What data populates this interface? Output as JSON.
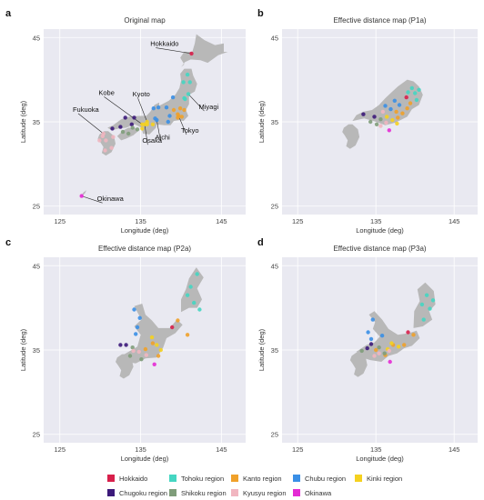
{
  "legend": [
    {
      "label": "Hokkaido",
      "color": "#d8204b"
    },
    {
      "label": "Tohoku region",
      "color": "#45d6c2"
    },
    {
      "label": "Kanto region",
      "color": "#f0a12a"
    },
    {
      "label": "Chubu region",
      "color": "#3a8fe6"
    },
    {
      "label": "Kinki region",
      "color": "#f5d11f"
    },
    {
      "label": "Chugoku region",
      "color": "#3c1a7a"
    },
    {
      "label": "Shikoku region",
      "color": "#7f9d7a"
    },
    {
      "label": "Kyusyu region",
      "color": "#f1b6c0"
    },
    {
      "label": "Okinawa",
      "color": "#e42bd4"
    }
  ],
  "chart_data": [
    {
      "type": "scatter",
      "panel": "a",
      "title": "Original map",
      "xlabel": "Longitude (deg)",
      "ylabel": "Latitude (deg)",
      "xlim": [
        123,
        148
      ],
      "ylim": [
        24,
        46
      ],
      "xticks": [
        125,
        135,
        145
      ],
      "yticks": [
        25,
        35,
        45
      ],
      "grid": true,
      "labels": [
        {
          "text": "Hokkaido",
          "point": [
            141.3,
            43.1
          ],
          "text_at": [
            136.2,
            44.0
          ]
        },
        {
          "text": "Miyagi",
          "point": [
            140.9,
            38.3
          ],
          "text_at": [
            142.2,
            36.5
          ]
        },
        {
          "text": "Kobe",
          "point": [
            135.2,
            34.7
          ],
          "text_at": [
            129.8,
            38.2
          ]
        },
        {
          "text": "Kyoto",
          "point": [
            135.8,
            35.0
          ],
          "text_at": [
            134.0,
            38.0
          ]
        },
        {
          "text": "Fukuoka",
          "point": [
            130.4,
            33.6
          ],
          "text_at": [
            126.6,
            36.2
          ]
        },
        {
          "text": "Tokyo",
          "point": [
            139.7,
            35.7
          ],
          "text_at": [
            140.0,
            33.7
          ]
        },
        {
          "text": "Osaka",
          "point": [
            135.5,
            34.7
          ],
          "text_at": [
            135.2,
            32.5
          ]
        },
        {
          "text": "Aichi",
          "point": [
            137.0,
            35.2
          ],
          "text_at": [
            136.8,
            32.9
          ]
        },
        {
          "text": "Okinawa",
          "point": [
            127.7,
            26.2
          ],
          "text_at": [
            129.6,
            25.6
          ]
        }
      ],
      "points": [
        {
          "lon": 141.3,
          "lat": 43.1,
          "region": 0
        },
        {
          "lon": 140.8,
          "lat": 40.6,
          "region": 1
        },
        {
          "lon": 140.3,
          "lat": 39.7,
          "region": 1
        },
        {
          "lon": 141.1,
          "lat": 39.7,
          "region": 1
        },
        {
          "lon": 140.9,
          "lat": 38.3,
          "region": 1
        },
        {
          "lon": 140.4,
          "lat": 37.8,
          "region": 1
        },
        {
          "lon": 140.5,
          "lat": 37.7,
          "region": 1
        },
        {
          "lon": 139.7,
          "lat": 35.7,
          "region": 2
        },
        {
          "lon": 140.1,
          "lat": 35.6,
          "region": 2
        },
        {
          "lon": 139.6,
          "lat": 35.5,
          "region": 2
        },
        {
          "lon": 139.6,
          "lat": 35.9,
          "region": 2
        },
        {
          "lon": 140.4,
          "lat": 36.4,
          "region": 2
        },
        {
          "lon": 139.9,
          "lat": 36.6,
          "region": 2
        },
        {
          "lon": 139.1,
          "lat": 36.4,
          "region": 2
        },
        {
          "lon": 137.0,
          "lat": 35.2,
          "region": 3
        },
        {
          "lon": 138.2,
          "lat": 36.7,
          "region": 3
        },
        {
          "lon": 139.0,
          "lat": 37.9,
          "region": 3
        },
        {
          "lon": 137.2,
          "lat": 36.7,
          "region": 3
        },
        {
          "lon": 136.6,
          "lat": 36.6,
          "region": 3
        },
        {
          "lon": 138.4,
          "lat": 35.0,
          "region": 3
        },
        {
          "lon": 136.8,
          "lat": 35.4,
          "region": 3
        },
        {
          "lon": 138.6,
          "lat": 35.7,
          "region": 3
        },
        {
          "lon": 135.5,
          "lat": 34.7,
          "region": 4
        },
        {
          "lon": 135.2,
          "lat": 34.7,
          "region": 4
        },
        {
          "lon": 135.8,
          "lat": 35.0,
          "region": 4
        },
        {
          "lon": 135.8,
          "lat": 34.7,
          "region": 4
        },
        {
          "lon": 135.2,
          "lat": 34.2,
          "region": 4
        },
        {
          "lon": 136.5,
          "lat": 34.7,
          "region": 4
        },
        {
          "lon": 132.5,
          "lat": 34.4,
          "region": 5
        },
        {
          "lon": 133.9,
          "lat": 34.7,
          "region": 5
        },
        {
          "lon": 131.5,
          "lat": 34.2,
          "region": 5
        },
        {
          "lon": 133.1,
          "lat": 35.5,
          "region": 5
        },
        {
          "lon": 134.2,
          "lat": 35.5,
          "region": 5
        },
        {
          "lon": 132.8,
          "lat": 33.8,
          "region": 6
        },
        {
          "lon": 134.0,
          "lat": 34.3,
          "region": 6
        },
        {
          "lon": 134.6,
          "lat": 34.1,
          "region": 6
        },
        {
          "lon": 133.5,
          "lat": 33.6,
          "region": 6
        },
        {
          "lon": 130.4,
          "lat": 33.6,
          "region": 7
        },
        {
          "lon": 129.9,
          "lat": 32.8,
          "region": 7
        },
        {
          "lon": 130.7,
          "lat": 32.8,
          "region": 7
        },
        {
          "lon": 131.6,
          "lat": 33.2,
          "region": 7
        },
        {
          "lon": 131.4,
          "lat": 31.9,
          "region": 7
        },
        {
          "lon": 130.6,
          "lat": 31.6,
          "region": 7
        },
        {
          "lon": 130.3,
          "lat": 33.3,
          "region": 7
        },
        {
          "lon": 127.7,
          "lat": 26.2,
          "region": 8
        }
      ]
    },
    {
      "type": "scatter",
      "panel": "b",
      "title": "Effective distance map (P1a)",
      "xlabel": "Longitude (deg)",
      "ylabel": "Latitude (deg)",
      "xlim": [
        123,
        148
      ],
      "ylim": [
        24,
        46
      ],
      "xticks": [
        125,
        135,
        145
      ],
      "yticks": [
        25,
        35,
        45
      ],
      "grid": true,
      "points": [
        {
          "lon": 138.9,
          "lat": 37.9,
          "region": 0
        },
        {
          "lon": 139.6,
          "lat": 39.0,
          "region": 1
        },
        {
          "lon": 140.0,
          "lat": 38.4,
          "region": 1
        },
        {
          "lon": 140.5,
          "lat": 38.8,
          "region": 1
        },
        {
          "lon": 139.1,
          "lat": 38.5,
          "region": 1
        },
        {
          "lon": 140.2,
          "lat": 37.6,
          "region": 1
        },
        {
          "lon": 138.4,
          "lat": 36.0,
          "region": 2
        },
        {
          "lon": 139.0,
          "lat": 36.6,
          "region": 2
        },
        {
          "lon": 137.6,
          "lat": 36.2,
          "region": 2
        },
        {
          "lon": 137.8,
          "lat": 35.5,
          "region": 2
        },
        {
          "lon": 139.4,
          "lat": 37.2,
          "region": 2
        },
        {
          "lon": 136.9,
          "lat": 36.5,
          "region": 3
        },
        {
          "lon": 137.4,
          "lat": 37.5,
          "region": 3
        },
        {
          "lon": 138.0,
          "lat": 37.0,
          "region": 3
        },
        {
          "lon": 136.2,
          "lat": 36.9,
          "region": 3
        },
        {
          "lon": 137.1,
          "lat": 35.2,
          "region": 4
        },
        {
          "lon": 136.4,
          "lat": 35.6,
          "region": 4
        },
        {
          "lon": 137.7,
          "lat": 34.8,
          "region": 4
        },
        {
          "lon": 133.4,
          "lat": 35.9,
          "region": 5
        },
        {
          "lon": 134.8,
          "lat": 35.6,
          "region": 5
        },
        {
          "lon": 135.6,
          "lat": 35.3,
          "region": 6
        },
        {
          "lon": 134.3,
          "lat": 35.0,
          "region": 6
        },
        {
          "lon": 135.1,
          "lat": 34.7,
          "region": 6
        },
        {
          "lon": 135.9,
          "lat": 36.2,
          "region": 7
        },
        {
          "lon": 136.3,
          "lat": 34.9,
          "region": 7
        },
        {
          "lon": 135.6,
          "lat": 34.5,
          "region": 7
        },
        {
          "lon": 136.7,
          "lat": 34.0,
          "region": 8
        }
      ]
    },
    {
      "type": "scatter",
      "panel": "c",
      "title": "Effective distance map (P2a)",
      "xlabel": "Longitude (deg)",
      "ylabel": "Latitude (deg)",
      "xlim": [
        123,
        148
      ],
      "ylim": [
        24,
        46
      ],
      "xticks": [
        125,
        135,
        145
      ],
      "yticks": [
        25,
        35,
        45
      ],
      "grid": true,
      "points": [
        {
          "lon": 138.9,
          "lat": 37.7,
          "region": 0
        },
        {
          "lon": 142.0,
          "lat": 44.0,
          "region": 1
        },
        {
          "lon": 141.2,
          "lat": 42.5,
          "region": 1
        },
        {
          "lon": 141.6,
          "lat": 40.6,
          "region": 1
        },
        {
          "lon": 140.8,
          "lat": 41.5,
          "region": 1
        },
        {
          "lon": 142.3,
          "lat": 39.8,
          "region": 1
        },
        {
          "lon": 136.5,
          "lat": 35.8,
          "region": 2
        },
        {
          "lon": 140.8,
          "lat": 36.8,
          "region": 2
        },
        {
          "lon": 137.2,
          "lat": 34.3,
          "region": 2
        },
        {
          "lon": 135.6,
          "lat": 35.1,
          "region": 2
        },
        {
          "lon": 139.6,
          "lat": 38.5,
          "region": 2
        },
        {
          "lon": 134.9,
          "lat": 38.8,
          "region": 3
        },
        {
          "lon": 134.2,
          "lat": 39.8,
          "region": 3
        },
        {
          "lon": 134.6,
          "lat": 37.7,
          "region": 3
        },
        {
          "lon": 134.4,
          "lat": 36.9,
          "region": 3
        },
        {
          "lon": 137.0,
          "lat": 35.6,
          "region": 4
        },
        {
          "lon": 136.4,
          "lat": 36.5,
          "region": 4
        },
        {
          "lon": 137.5,
          "lat": 35.0,
          "region": 4
        },
        {
          "lon": 132.5,
          "lat": 35.6,
          "region": 5
        },
        {
          "lon": 133.2,
          "lat": 35.6,
          "region": 5
        },
        {
          "lon": 133.7,
          "lat": 34.3,
          "region": 6
        },
        {
          "lon": 135.1,
          "lat": 33.9,
          "region": 6
        },
        {
          "lon": 134.0,
          "lat": 35.3,
          "region": 6
        },
        {
          "lon": 134.8,
          "lat": 34.8,
          "region": 7
        },
        {
          "lon": 135.7,
          "lat": 34.4,
          "region": 7
        },
        {
          "lon": 134.1,
          "lat": 34.9,
          "region": 7
        },
        {
          "lon": 136.7,
          "lat": 33.3,
          "region": 8
        }
      ]
    },
    {
      "type": "scatter",
      "panel": "d",
      "title": "Effective distance map (P3a)",
      "xlabel": "Longitude (deg)",
      "ylabel": "Latitude (deg)",
      "xlim": [
        123,
        148
      ],
      "ylim": [
        24,
        46
      ],
      "xticks": [
        125,
        135,
        145
      ],
      "yticks": [
        25,
        35,
        45
      ],
      "grid": true,
      "points": [
        {
          "lon": 139.1,
          "lat": 37.1,
          "region": 0
        },
        {
          "lon": 141.9,
          "lat": 39.9,
          "region": 1
        },
        {
          "lon": 141.5,
          "lat": 41.5,
          "region": 1
        },
        {
          "lon": 140.9,
          "lat": 40.4,
          "region": 1
        },
        {
          "lon": 142.3,
          "lat": 40.9,
          "region": 1
        },
        {
          "lon": 141.1,
          "lat": 38.6,
          "region": 1
        },
        {
          "lon": 137.2,
          "lat": 35.6,
          "region": 2
        },
        {
          "lon": 138.6,
          "lat": 35.6,
          "region": 2
        },
        {
          "lon": 136.2,
          "lat": 34.4,
          "region": 2
        },
        {
          "lon": 135.0,
          "lat": 35.0,
          "region": 2
        },
        {
          "lon": 139.8,
          "lat": 36.8,
          "region": 2
        },
        {
          "lon": 134.6,
          "lat": 38.6,
          "region": 3
        },
        {
          "lon": 134.0,
          "lat": 37.1,
          "region": 3
        },
        {
          "lon": 134.4,
          "lat": 36.3,
          "region": 3
        },
        {
          "lon": 135.8,
          "lat": 36.7,
          "region": 3
        },
        {
          "lon": 137.0,
          "lat": 35.8,
          "region": 4
        },
        {
          "lon": 136.5,
          "lat": 35.1,
          "region": 4
        },
        {
          "lon": 137.9,
          "lat": 35.4,
          "region": 4
        },
        {
          "lon": 133.9,
          "lat": 35.2,
          "region": 5
        },
        {
          "lon": 134.4,
          "lat": 35.7,
          "region": 5
        },
        {
          "lon": 133.2,
          "lat": 34.9,
          "region": 6
        },
        {
          "lon": 135.4,
          "lat": 35.3,
          "region": 6
        },
        {
          "lon": 136.1,
          "lat": 34.6,
          "region": 6
        },
        {
          "lon": 134.8,
          "lat": 34.3,
          "region": 7
        },
        {
          "lon": 135.4,
          "lat": 34.6,
          "region": 7
        },
        {
          "lon": 136.7,
          "lat": 34.9,
          "region": 7
        },
        {
          "lon": 136.8,
          "lat": 33.6,
          "region": 8
        }
      ]
    }
  ]
}
